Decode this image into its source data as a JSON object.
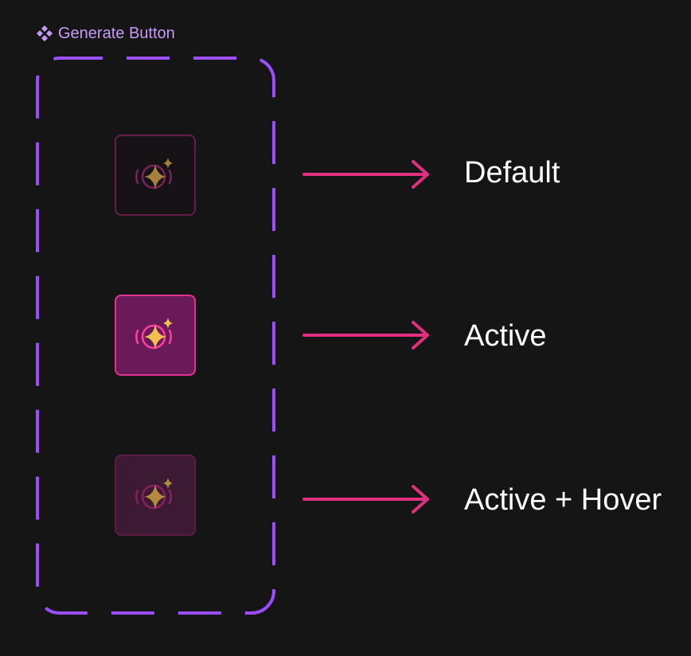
{
  "component": {
    "title": "Generate Button",
    "icon": "component-icon"
  },
  "states": [
    {
      "label": "Default",
      "icon": "sparkle-generate-icon"
    },
    {
      "label": "Active",
      "icon": "sparkle-generate-icon"
    },
    {
      "label": "Active + Hover",
      "icon": "sparkle-generate-icon"
    }
  ],
  "colors": {
    "background": "#151515",
    "frame_border": "#9b4dff",
    "header_text": "#c59bf6",
    "arrow": "#e0307f",
    "label_text": "#ffffff",
    "default_border": "#6a1d4c",
    "active_fill": "#6b1a59",
    "active_border": "#e0338d",
    "hover_fill": "#3d1a33",
    "sparkle": "#e6b54a"
  }
}
